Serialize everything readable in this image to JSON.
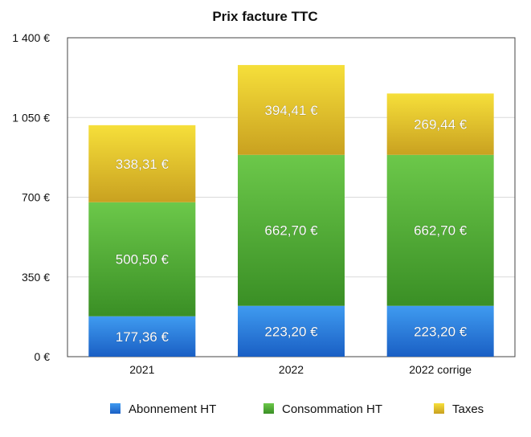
{
  "chart_data": {
    "type": "bar",
    "stacked": true,
    "title": "Prix facture TTC",
    "categories": [
      "2021",
      "2022",
      "2022 corrige"
    ],
    "series": [
      {
        "name": "Abonnement HT",
        "values": [
          177.36,
          223.2,
          223.2
        ],
        "labels": [
          "177,36 €",
          "223,20 €",
          "223,20 €"
        ],
        "color_top": "#3f9bf0",
        "color_bottom": "#1a5fc4"
      },
      {
        "name": "Consommation HT",
        "values": [
          500.5,
          662.7,
          662.7
        ],
        "labels": [
          "500,50 €",
          "662,70 €",
          "662,70 €"
        ],
        "color_top": "#6cc84a",
        "color_bottom": "#3a8f25"
      },
      {
        "name": "Taxes",
        "values": [
          338.31,
          394.41,
          269.44
        ],
        "labels": [
          "338,31 €",
          "394,41 €",
          "269,44 €"
        ],
        "color_top": "#f6df3a",
        "color_bottom": "#c9a120"
      }
    ],
    "y_ticks": [
      0,
      350,
      700,
      1050,
      1400
    ],
    "y_tick_labels": [
      "0 €",
      "350 €",
      "700 €",
      "1 050 €",
      "1 400 €"
    ],
    "ylim": [
      0,
      1400
    ],
    "xlabel": "",
    "ylabel": "",
    "grid": true,
    "legend_position": "bottom"
  }
}
